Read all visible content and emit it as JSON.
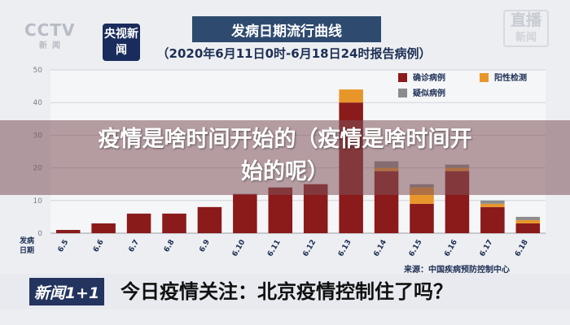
{
  "branding": {
    "cctv_logo": "CCTV",
    "cctv_sub": "新闻",
    "channel_logo": "央视新闻",
    "live_badge": "直播",
    "live_badge_sub": "新闻"
  },
  "chart_data": {
    "type": "bar",
    "title": "发病日期流行曲线",
    "subtitle": "（2020年6月11日0时-6月18日24时报告病例）",
    "xlabel": "发病日期",
    "ylabel": "",
    "ylim": [
      0,
      50
    ],
    "yticks": [
      0,
      10,
      20,
      30,
      40,
      50
    ],
    "stacked": true,
    "categories": [
      "6.5",
      "6.6",
      "6.7",
      "6.8",
      "6.9",
      "6.10",
      "6.11",
      "6.12",
      "6.13",
      "6.14",
      "6.15",
      "6.16",
      "6.17",
      "6.18"
    ],
    "series": [
      {
        "name": "确诊病例",
        "color": "#8b1a1a",
        "values": [
          1,
          3,
          6,
          6,
          8,
          12,
          14,
          15,
          40,
          19,
          9,
          19,
          8,
          3
        ]
      },
      {
        "name": "阳性检测",
        "color": "#e8962a",
        "values": [
          0,
          0,
          0,
          0,
          0,
          0,
          0,
          0,
          4,
          1,
          5,
          1,
          1,
          1
        ]
      },
      {
        "name": "疑似病例",
        "color": "#8c8c8c",
        "values": [
          0,
          0,
          0,
          0,
          0,
          0,
          0,
          0,
          0,
          2,
          1,
          1,
          1,
          1
        ]
      }
    ],
    "grid": true,
    "legend_position": "top-right",
    "source": "来源：中国疾病预防控制中心"
  },
  "overlay": {
    "line1": "疫情是啥时间开始的（疫情是啥时间开",
    "line2": "始的呢）"
  },
  "ticker": {
    "tag": "新闻1+1",
    "headline": "今日疫情关注：北京疫情控制住了吗？"
  }
}
